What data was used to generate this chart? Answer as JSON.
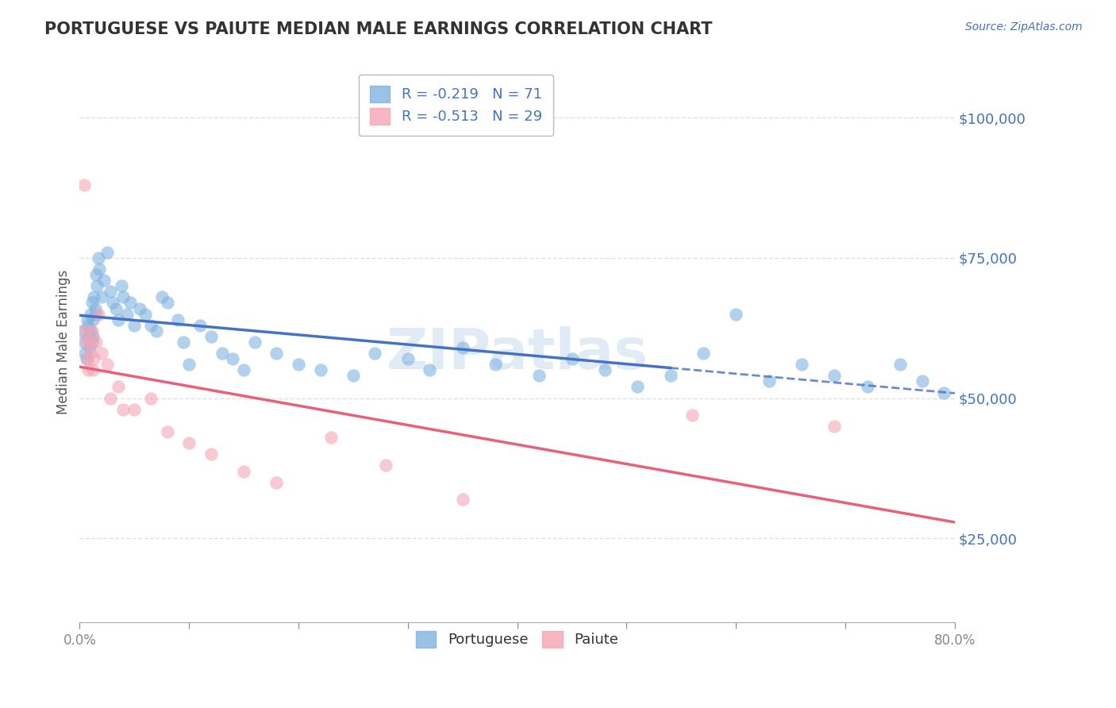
{
  "title": "PORTUGUESE VS PAIUTE MEDIAN MALE EARNINGS CORRELATION CHART",
  "source": "Source: ZipAtlas.com",
  "ylabel": "Median Male Earnings",
  "xlim": [
    0.0,
    0.8
  ],
  "ylim": [
    10000,
    110000
  ],
  "ytick_vals": [
    25000,
    50000,
    75000,
    100000
  ],
  "ytick_labels": [
    "$25,000",
    "$50,000",
    "$75,000",
    "$100,000"
  ],
  "xtick_positions": [
    0.0,
    0.1,
    0.2,
    0.3,
    0.4,
    0.5,
    0.6,
    0.7,
    0.8
  ],
  "xtick_labels": [
    "0.0%",
    "",
    "",
    "",
    "",
    "",
    "",
    "",
    "80.0%"
  ],
  "background_color": "#ffffff",
  "title_color": "#333333",
  "axis_label_color": "#555555",
  "ytick_color": "#4472c4",
  "xtick_color": "#888888",
  "blue_color": "#7fb3e0",
  "pink_color": "#f4a5b5",
  "trendline_blue": "#4472c4",
  "trendline_pink": "#e8607a",
  "grid_color": "#cccccc",
  "grid_style": "--",
  "grid_alpha": 0.6,
  "blue_x": [
    0.003,
    0.004,
    0.005,
    0.006,
    0.007,
    0.008,
    0.008,
    0.009,
    0.01,
    0.01,
    0.011,
    0.011,
    0.012,
    0.012,
    0.013,
    0.014,
    0.015,
    0.015,
    0.016,
    0.017,
    0.018,
    0.02,
    0.022,
    0.025,
    0.028,
    0.03,
    0.033,
    0.035,
    0.038,
    0.04,
    0.043,
    0.046,
    0.05,
    0.055,
    0.06,
    0.065,
    0.07,
    0.075,
    0.08,
    0.09,
    0.095,
    0.1,
    0.11,
    0.12,
    0.13,
    0.14,
    0.15,
    0.16,
    0.18,
    0.2,
    0.22,
    0.25,
    0.27,
    0.3,
    0.32,
    0.35,
    0.38,
    0.42,
    0.45,
    0.48,
    0.51,
    0.54,
    0.57,
    0.6,
    0.63,
    0.66,
    0.69,
    0.72,
    0.75,
    0.77,
    0.79
  ],
  "blue_y": [
    62000,
    60000,
    58000,
    57000,
    64000,
    63000,
    61000,
    59000,
    65000,
    62000,
    67000,
    60000,
    64000,
    61000,
    68000,
    66000,
    72000,
    65000,
    70000,
    75000,
    73000,
    68000,
    71000,
    76000,
    69000,
    67000,
    66000,
    64000,
    70000,
    68000,
    65000,
    67000,
    63000,
    66000,
    65000,
    63000,
    62000,
    68000,
    67000,
    64000,
    60000,
    56000,
    63000,
    61000,
    58000,
    57000,
    55000,
    60000,
    58000,
    56000,
    55000,
    54000,
    58000,
    57000,
    55000,
    59000,
    56000,
    54000,
    57000,
    55000,
    52000,
    54000,
    58000,
    65000,
    53000,
    56000,
    54000,
    52000,
    56000,
    53000,
    51000
  ],
  "pink_x": [
    0.004,
    0.005,
    0.006,
    0.007,
    0.008,
    0.009,
    0.01,
    0.011,
    0.012,
    0.013,
    0.015,
    0.017,
    0.02,
    0.025,
    0.028,
    0.035,
    0.04,
    0.05,
    0.065,
    0.08,
    0.1,
    0.12,
    0.15,
    0.18,
    0.23,
    0.28,
    0.35,
    0.56,
    0.69
  ],
  "pink_y": [
    88000,
    62000,
    60000,
    57000,
    55000,
    60000,
    58000,
    62000,
    55000,
    57000,
    60000,
    65000,
    58000,
    56000,
    50000,
    52000,
    48000,
    48000,
    50000,
    44000,
    42000,
    40000,
    37000,
    35000,
    43000,
    38000,
    32000,
    47000,
    45000
  ],
  "legend1_text": "R = -0.219   N = 71",
  "legend2_text": "R = -0.513   N = 29",
  "legend_label1": "Portuguese",
  "legend_label2": "Paiute",
  "watermark_text": "ZIPatlas",
  "watermark_color": "#c5d8ef",
  "watermark_alpha": 0.5
}
